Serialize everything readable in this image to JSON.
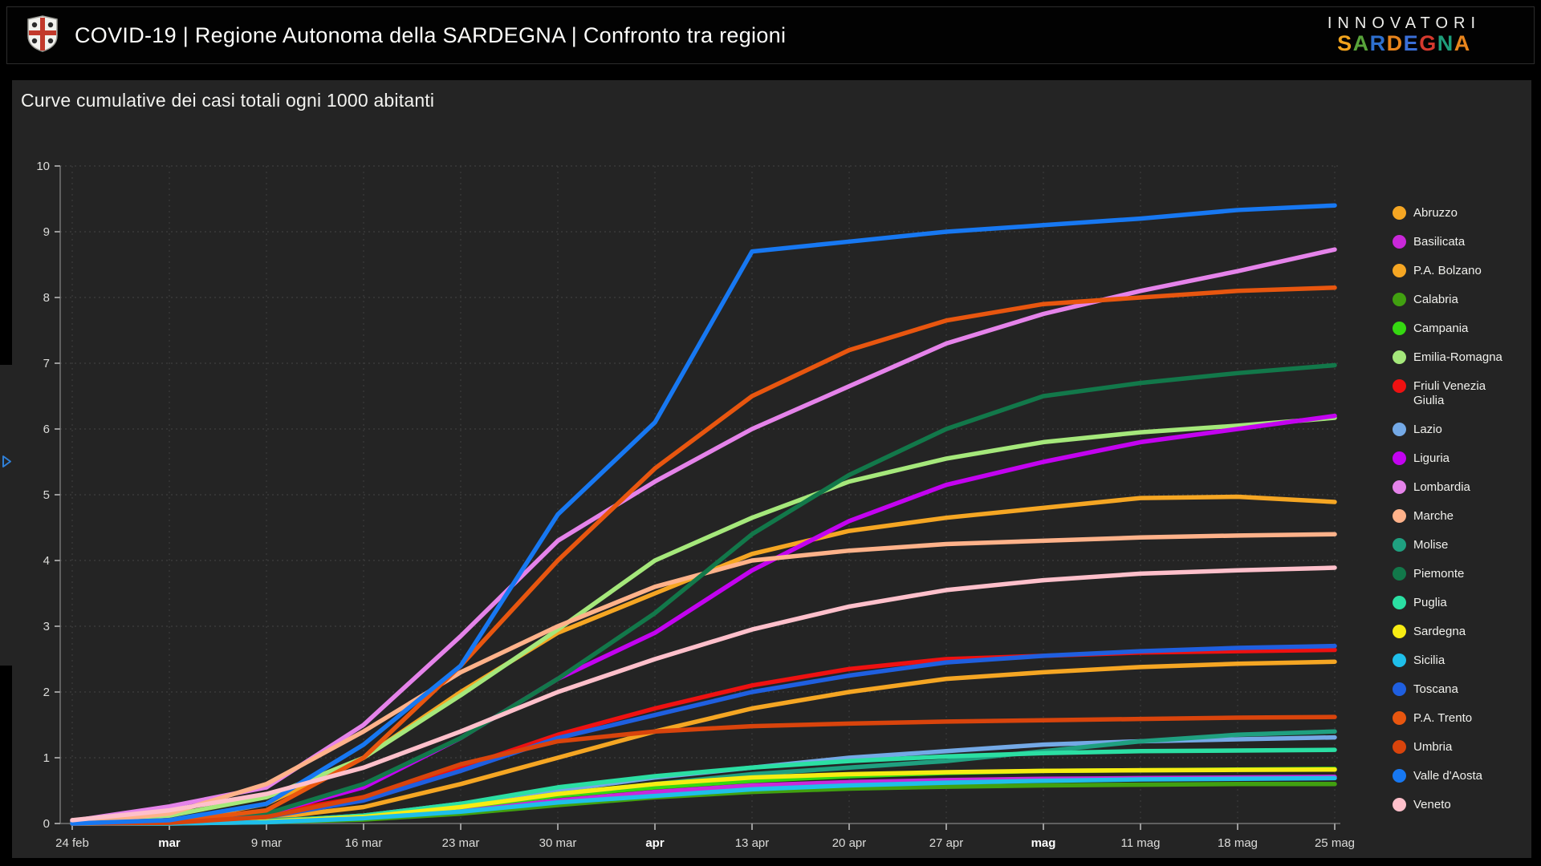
{
  "header": {
    "title": "COVID-19 | Regione Autonoma della SARDEGNA | Confronto tra regioni",
    "logo": "sardinia-crest",
    "brand_top": "INNOVATORI",
    "brand_bottom": "SARDEGNA",
    "brand_letters": [
      {
        "ch": "S",
        "color": "#f2a41d"
      },
      {
        "ch": "A",
        "color": "#58a33a"
      },
      {
        "ch": "R",
        "color": "#2e6fce"
      },
      {
        "ch": "D",
        "color": "#e8841c"
      },
      {
        "ch": "E",
        "color": "#3a6fd8"
      },
      {
        "ch": "G",
        "color": "#d5392e"
      },
      {
        "ch": "N",
        "color": "#1e9e7a"
      },
      {
        "ch": "A",
        "color": "#e8841c"
      }
    ]
  },
  "side_toggle": {
    "icon": "chevron-right",
    "color": "#2f7fd6"
  },
  "theme": {
    "background": "#000000",
    "panel": "#242424",
    "grid": "#3d3d3d",
    "axis": "#757575",
    "tick": "#9a9a9a",
    "text": "#dcdcda",
    "text_bold": "#ffffff"
  },
  "chart_data": {
    "type": "line",
    "title": "Curve cumulative dei casi totali ogni 1000 abitanti",
    "xlabel": "",
    "ylabel": "",
    "ylim": [
      0,
      10
    ],
    "y_ticks": [
      0,
      1,
      2,
      3,
      4,
      5,
      6,
      7,
      8,
      9,
      10
    ],
    "grid": "dashed",
    "legend_position": "right",
    "x_labels": [
      "24 feb",
      "mar",
      "9 mar",
      "16 mar",
      "23 mar",
      "30 mar",
      "apr",
      "13 apr",
      "20 apr",
      "27 apr",
      "mag",
      "11 mag",
      "18 mag",
      "25 mag"
    ],
    "x_bold": [
      false,
      true,
      false,
      false,
      false,
      false,
      true,
      false,
      false,
      false,
      true,
      false,
      false,
      false
    ],
    "series": [
      {
        "name": "Abruzzo",
        "color": "#f5a623",
        "values": [
          0,
          0.01,
          0.08,
          0.25,
          0.6,
          1.0,
          1.4,
          1.75,
          2.0,
          2.2,
          2.3,
          2.38,
          2.43,
          2.46
        ]
      },
      {
        "name": "Basilicata",
        "color": "#c928d9",
        "values": [
          0,
          0,
          0.02,
          0.08,
          0.2,
          0.35,
          0.48,
          0.58,
          0.63,
          0.66,
          0.68,
          0.69,
          0.7,
          0.71
        ]
      },
      {
        "name": "P.A. Bolzano",
        "color": "#f5a623",
        "values": [
          0,
          0.02,
          0.3,
          1.0,
          2.0,
          2.9,
          3.5,
          4.1,
          4.45,
          4.65,
          4.8,
          4.95,
          4.97,
          4.89
        ]
      },
      {
        "name": "Calabria",
        "color": "#41a010",
        "values": [
          0,
          0,
          0.02,
          0.06,
          0.15,
          0.28,
          0.4,
          0.48,
          0.53,
          0.56,
          0.58,
          0.59,
          0.6,
          0.6
        ]
      },
      {
        "name": "Campania",
        "color": "#35d811",
        "values": [
          0,
          0.01,
          0.03,
          0.1,
          0.25,
          0.42,
          0.55,
          0.65,
          0.72,
          0.77,
          0.8,
          0.81,
          0.82,
          0.83
        ]
      },
      {
        "name": "Emilia-Romagna",
        "color": "#a5e87b",
        "values": [
          0.02,
          0.12,
          0.4,
          1.0,
          1.95,
          2.95,
          4.0,
          4.65,
          5.2,
          5.55,
          5.8,
          5.95,
          6.05,
          6.17
        ]
      },
      {
        "name": "Friuli Venezia Giulia",
        "color": "#ee1111",
        "values": [
          0,
          0.05,
          0.15,
          0.4,
          0.85,
          1.35,
          1.75,
          2.1,
          2.35,
          2.5,
          2.55,
          2.6,
          2.62,
          2.64
        ]
      },
      {
        "name": "Lazio",
        "color": "#74a9e6",
        "values": [
          0,
          0.01,
          0.03,
          0.12,
          0.3,
          0.5,
          0.7,
          0.85,
          1.0,
          1.1,
          1.2,
          1.25,
          1.28,
          1.31
        ]
      },
      {
        "name": "Liguria",
        "color": "#c303f0",
        "values": [
          0,
          0.02,
          0.15,
          0.55,
          1.3,
          2.2,
          2.9,
          3.85,
          4.6,
          5.15,
          5.5,
          5.8,
          6.0,
          6.2
        ]
      },
      {
        "name": "Lombardia",
        "color": "#e583ea",
        "values": [
          0.04,
          0.26,
          0.55,
          1.5,
          2.85,
          4.3,
          5.2,
          6.0,
          6.65,
          7.3,
          7.75,
          8.1,
          8.4,
          8.73
        ]
      },
      {
        "name": "Marche",
        "color": "#ffb28a",
        "values": [
          0,
          0.15,
          0.6,
          1.4,
          2.3,
          3.0,
          3.6,
          4.0,
          4.15,
          4.25,
          4.3,
          4.35,
          4.38,
          4.4
        ]
      },
      {
        "name": "Molise",
        "color": "#1fa080",
        "values": [
          0,
          0.02,
          0.05,
          0.1,
          0.25,
          0.45,
          0.6,
          0.75,
          0.85,
          0.95,
          1.1,
          1.25,
          1.35,
          1.4
        ]
      },
      {
        "name": "Piemonte",
        "color": "#12784a",
        "values": [
          0,
          0.04,
          0.15,
          0.6,
          1.3,
          2.2,
          3.2,
          4.4,
          5.3,
          6.0,
          6.5,
          6.7,
          6.85,
          6.97
        ]
      },
      {
        "name": "Puglia",
        "color": "#2bdfa3",
        "values": [
          0,
          0.01,
          0.03,
          0.12,
          0.3,
          0.55,
          0.72,
          0.85,
          0.95,
          1.02,
          1.07,
          1.1,
          1.11,
          1.12
        ]
      },
      {
        "name": "Sardegna",
        "color": "#f7ec13",
        "values": [
          0,
          0.01,
          0.03,
          0.1,
          0.25,
          0.45,
          0.6,
          0.7,
          0.75,
          0.78,
          0.8,
          0.81,
          0.815,
          0.82
        ]
      },
      {
        "name": "Sicilia",
        "color": "#1fbfea",
        "values": [
          0,
          0,
          0.02,
          0.08,
          0.18,
          0.32,
          0.42,
          0.52,
          0.58,
          0.62,
          0.65,
          0.67,
          0.68,
          0.69
        ]
      },
      {
        "name": "Toscana",
        "color": "#1f5fe0",
        "values": [
          0,
          0.02,
          0.1,
          0.35,
          0.8,
          1.3,
          1.65,
          2.0,
          2.25,
          2.45,
          2.55,
          2.62,
          2.67,
          2.7
        ]
      },
      {
        "name": "P.A. Trento",
        "color": "#e8560f",
        "values": [
          0,
          0.02,
          0.2,
          1.0,
          2.4,
          4.0,
          5.4,
          6.5,
          7.2,
          7.65,
          7.9,
          8.0,
          8.1,
          8.15
        ]
      },
      {
        "name": "Umbria",
        "color": "#d9440c",
        "values": [
          0,
          0.01,
          0.1,
          0.4,
          0.9,
          1.25,
          1.4,
          1.48,
          1.52,
          1.55,
          1.57,
          1.59,
          1.61,
          1.62
        ]
      },
      {
        "name": "Valle d'Aosta",
        "color": "#1778f2",
        "values": [
          0,
          0.05,
          0.3,
          1.2,
          2.4,
          4.7,
          6.1,
          8.7,
          8.85,
          9.0,
          9.1,
          9.2,
          9.33,
          9.4
        ]
      },
      {
        "name": "Veneto",
        "color": "#ffc0cb",
        "values": [
          0.05,
          0.2,
          0.45,
          0.85,
          1.4,
          2.0,
          2.5,
          2.95,
          3.3,
          3.55,
          3.7,
          3.8,
          3.85,
          3.89
        ]
      }
    ]
  }
}
